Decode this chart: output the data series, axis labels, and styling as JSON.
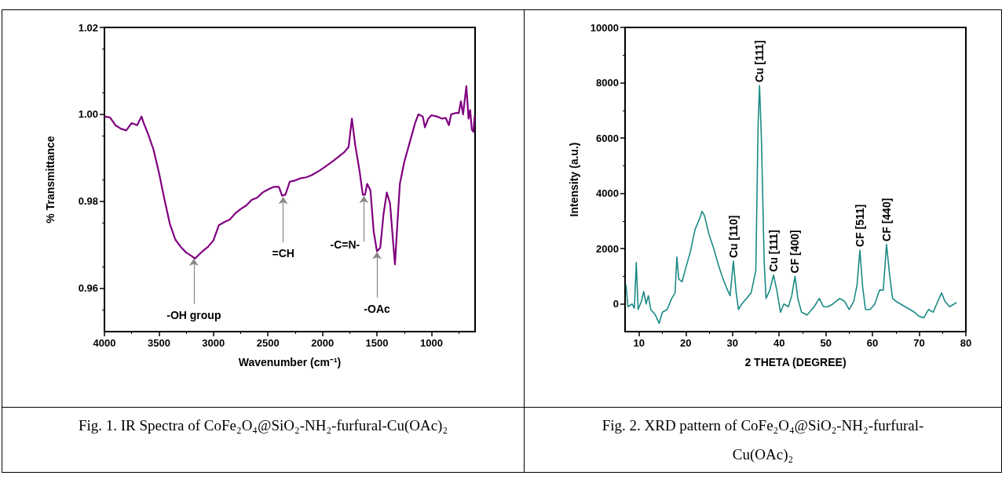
{
  "chart_data": [
    {
      "type": "line",
      "title": "Fig. 1. IR Spectra of CoFe₂O₄@SiO₂-NH₂-furfural-Cu(OAc)₂",
      "xlabel": "Wavenumber (cm⁻¹)",
      "ylabel": "% Transmittance",
      "x": [
        4000,
        3950,
        3900,
        3850,
        3800,
        3750,
        3700,
        3660,
        3640,
        3600,
        3550,
        3500,
        3450,
        3400,
        3350,
        3300,
        3250,
        3200,
        3170,
        3100,
        3050,
        3000,
        2950,
        2900,
        2850,
        2800,
        2750,
        2700,
        2650,
        2600,
        2550,
        2500,
        2450,
        2400,
        2370,
        2340,
        2300,
        2250,
        2200,
        2150,
        2100,
        2050,
        2000,
        1950,
        1900,
        1850,
        1800,
        1760,
        1730,
        1700,
        1660,
        1630,
        1610,
        1590,
        1560,
        1530,
        1500,
        1470,
        1440,
        1410,
        1380,
        1350,
        1335,
        1310,
        1290,
        1250,
        1200,
        1150,
        1120,
        1080,
        1060,
        1030,
        1000,
        950,
        900,
        870,
        840,
        820,
        780,
        750,
        730,
        710,
        680,
        660,
        645,
        630,
        615,
        605
      ],
      "series": [
        {
          "color": "#800080",
          "values": [
            0.9995,
            0.9993,
            0.9975,
            0.9967,
            0.9963,
            0.998,
            0.9975,
            0.9995,
            0.998,
            0.9955,
            0.9919,
            0.9866,
            0.9805,
            0.9748,
            0.9712,
            0.9695,
            0.9682,
            0.9674,
            0.9668,
            0.9685,
            0.9695,
            0.971,
            0.9745,
            0.9752,
            0.9758,
            0.9772,
            0.9782,
            0.979,
            0.9803,
            0.9808,
            0.982,
            0.9827,
            0.9833,
            0.9833,
            0.9813,
            0.9815,
            0.9845,
            0.9848,
            0.9853,
            0.9855,
            0.986,
            0.9867,
            0.9875,
            0.9884,
            0.9893,
            0.9903,
            0.9913,
            0.9925,
            0.999,
            0.993,
            0.987,
            0.9815,
            0.9815,
            0.984,
            0.9825,
            0.973,
            0.9685,
            0.9693,
            0.977,
            0.982,
            0.9795,
            0.97,
            0.9655,
            0.976,
            0.984,
            0.989,
            0.9935,
            0.998,
            1.0,
            0.9995,
            0.997,
            0.999,
            0.9998,
            0.9995,
            0.999,
            0.9992,
            0.9975,
            1.0,
            1.0003,
            1.0003,
            1.003,
            1.0,
            1.0065,
            0.999,
            1.001,
            0.9965,
            0.996,
            0.9995
          ]
        }
      ],
      "xlim": [
        4000,
        600
      ],
      "xticks": [
        4000,
        3500,
        3000,
        2500,
        2000,
        1500,
        1000
      ],
      "ylim": [
        0.95,
        1.02
      ],
      "yticks": [
        0.96,
        0.98,
        {
          "value": 1.0,
          "label": "1.00"
        },
        1.02
      ],
      "annotations": [
        {
          "text": "-OH group",
          "x": 3180,
          "y": 0.9668
        },
        {
          "text": "=CH",
          "x": 2360,
          "y": 0.981
        },
        {
          "text": "-C=N-",
          "x": 1620,
          "y": 0.9812
        },
        {
          "text": "-OAc",
          "x": 1500,
          "y": 0.9683
        }
      ],
      "grid": false,
      "marker": "none",
      "line_style": "solid"
    },
    {
      "type": "line",
      "title": "Fig. 2. XRD pattern of CoFe₂O₄@SiO₂-NH₂-furfural-Cu(OAc)₂",
      "xlabel": "2 THETA (DEGREE)",
      "ylabel": "Intensity (a.u.)",
      "x": [
        7.2,
        7.6,
        8.5,
        9.0,
        9.4,
        9.8,
        10.5,
        11,
        11.5,
        12,
        12.5,
        13.5,
        14.3,
        15,
        16,
        17,
        17.7,
        18.1,
        18.5,
        19.2,
        20,
        21,
        22,
        23,
        23.5,
        24,
        25,
        26,
        27,
        28,
        28.7,
        29.5,
        30.2,
        30.8,
        31.3,
        32,
        33,
        34,
        35,
        35.5,
        35.8,
        36.2,
        36.8,
        37.2,
        38,
        38.8,
        39.5,
        40.3,
        41,
        42,
        42.7,
        43.4,
        44,
        44.8,
        46,
        47.5,
        48.6,
        49.5,
        50.5,
        51.5,
        53,
        54,
        55,
        56,
        56.7,
        57.3,
        57.9,
        58.5,
        59.5,
        60.5,
        61.5,
        62.3,
        63,
        63.7,
        64.3,
        65,
        66,
        67,
        68,
        69,
        70,
        71,
        72,
        73,
        74,
        74.8,
        75.5,
        76.5,
        77.5,
        78
      ],
      "series": [
        {
          "color": "#1a8a85",
          "values": [
            700,
            -100,
            0,
            -150,
            1500,
            -200,
            100,
            450,
            0,
            300,
            -200,
            -400,
            -700,
            -300,
            -200,
            200,
            400,
            1700,
            900,
            800,
            1300,
            1900,
            2700,
            3100,
            3350,
            3200,
            2500,
            2000,
            1400,
            900,
            600,
            300,
            1550,
            400,
            -200,
            0,
            200,
            400,
            1200,
            6500,
            7900,
            6000,
            1500,
            200,
            500,
            1050,
            500,
            -300,
            0,
            -100,
            300,
            1000,
            200,
            -300,
            -400,
            -100,
            200,
            -100,
            -100,
            0,
            200,
            100,
            -200,
            100,
            700,
            1950,
            600,
            -200,
            -200,
            0,
            500,
            500,
            2150,
            1000,
            200,
            100,
            0,
            -100,
            -200,
            -300,
            -450,
            -500,
            -200,
            -300,
            100,
            400,
            100,
            -100,
            0,
            50
          ]
        }
      ],
      "xlim": [
        7,
        80
      ],
      "xticks": [
        10,
        20,
        30,
        40,
        50,
        60,
        70,
        80
      ],
      "ylim": [
        -1000,
        10000
      ],
      "yticks": [
        0,
        2000,
        4000,
        6000,
        8000,
        10000
      ],
      "annotations": [
        {
          "text": "Cu [110]",
          "x": 30.2,
          "y": 1550
        },
        {
          "text": "Cu [111]",
          "x": 35.8,
          "y": 7900
        },
        {
          "text": "Cu [111]",
          "x": 38.8,
          "y": 1050
        },
        {
          "text": "CF [400]",
          "x": 43.4,
          "y": 1000
        },
        {
          "text": "CF [511]",
          "x": 57.3,
          "y": 1950
        },
        {
          "text": "CF [440]",
          "x": 63,
          "y": 2150
        }
      ],
      "grid": false,
      "marker": "none",
      "line_style": "solid"
    }
  ]
}
